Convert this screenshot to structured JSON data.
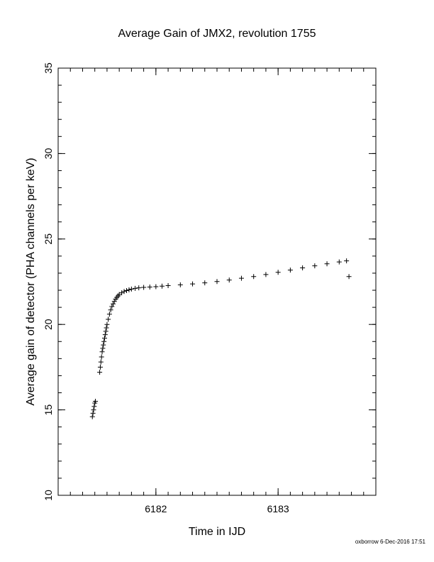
{
  "chart_data": {
    "type": "scatter",
    "title": "Average Gain of JMX2, revolution 1755",
    "xlabel": "Time in IJD",
    "ylabel": "Average gain of detector (PHA channels per keV)",
    "xlim": [
      6181.2,
      6183.8
    ],
    "ylim": [
      10,
      35
    ],
    "x_ticks": [
      6182,
      6183
    ],
    "y_ticks": [
      10,
      15,
      20,
      25,
      30,
      35
    ],
    "x_minor_step": 0.1,
    "y_minor_step": 1,
    "grid": false,
    "marker": "plus",
    "series": [
      {
        "x": [
          6181.48,
          6181.485,
          6181.49,
          6181.495,
          6181.5,
          6181.505,
          6181.54,
          6181.545,
          6181.55,
          6181.555,
          6181.56,
          6181.565,
          6181.57,
          6181.575,
          6181.58,
          6181.585,
          6181.59,
          6181.595,
          6181.6,
          6181.61,
          6181.62,
          6181.63,
          6181.64,
          6181.65,
          6181.66,
          6181.67,
          6181.68,
          6181.69,
          6181.7,
          6181.72,
          6181.74,
          6181.76,
          6181.78,
          6181.8,
          6181.83,
          6181.86,
          6181.9,
          6181.95,
          6182.0,
          6182.05,
          6182.1,
          6182.2,
          6182.3,
          6182.4,
          6182.5,
          6182.6,
          6182.7,
          6182.8,
          6182.9,
          6183.0,
          6183.1,
          6183.2,
          6183.3,
          6183.4,
          6183.5,
          6183.56,
          6183.58
        ],
        "y": [
          14.6,
          14.8,
          15.0,
          15.2,
          15.4,
          15.5,
          17.2,
          17.5,
          17.8,
          18.1,
          18.4,
          18.6,
          18.8,
          19.0,
          19.2,
          19.4,
          19.6,
          19.8,
          20.0,
          20.3,
          20.6,
          20.85,
          21.05,
          21.2,
          21.35,
          21.48,
          21.58,
          21.67,
          21.75,
          21.85,
          21.93,
          21.98,
          22.03,
          22.07,
          22.11,
          22.14,
          22.17,
          22.19,
          22.21,
          22.24,
          22.27,
          22.32,
          22.37,
          22.43,
          22.51,
          22.6,
          22.7,
          22.8,
          22.92,
          23.05,
          23.18,
          23.31,
          23.43,
          23.55,
          23.66,
          23.72,
          22.8
        ]
      }
    ]
  },
  "footer": {
    "credit": "oxborrow 6-Dec-2016 17:51"
  }
}
